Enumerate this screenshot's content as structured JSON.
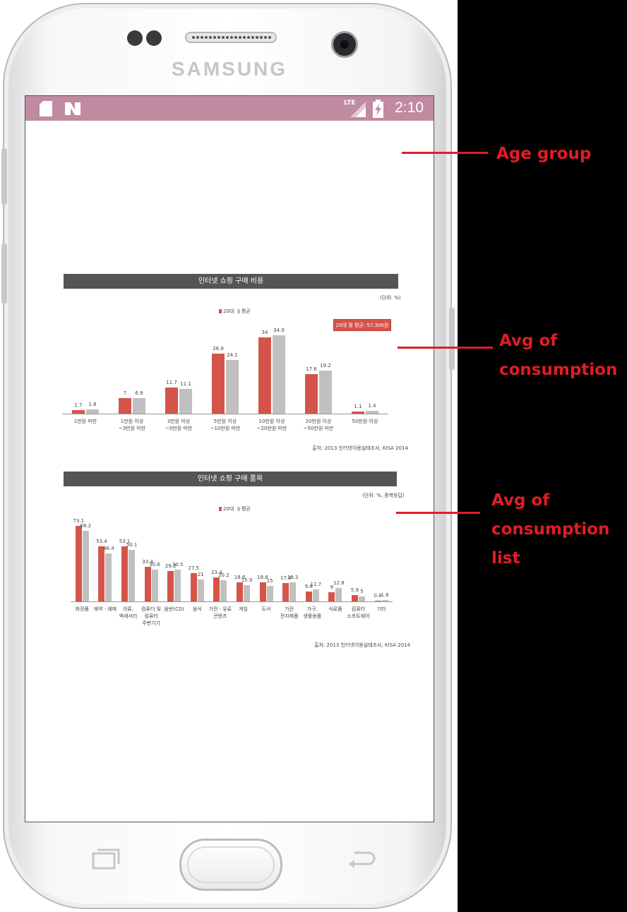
{
  "statusbar": {
    "time": "2:10",
    "network": "LTE"
  },
  "device": {
    "brand": "SAMSUNG"
  },
  "colors": {
    "statusbar": "#c08aa0",
    "series_2013": "#d4544a",
    "series_avg": "#c0c0c0",
    "annotation": "#e01d24"
  },
  "icons": {
    "sdcard": "sdcard-icon",
    "notification": "n-notification-icon",
    "signal": "signal-icon",
    "battery": "battery-charging-icon",
    "recents": "recents-icon",
    "back": "back-icon"
  },
  "annotations": [
    {
      "text": "Age group"
    },
    {
      "text": "Avg of\nconsumption"
    },
    {
      "text": "Avg of\nconsumption\nlist"
    }
  ],
  "chart_data": [
    {
      "type": "bar",
      "title": "인터넷 쇼핑 구매 비용",
      "unit_label": "(단위: %)",
      "badge": "20대 월 평균: 57,300원",
      "source": "출처: 2013 인터넷이용실태조사, KISA 2014",
      "categories": [
        "1만원 미만",
        "1만원 이상\n~3만원 미만",
        "3만원 이상\n~5만원 미만",
        "5만원 이상\n~10만원 미만",
        "10만원 이상\n~20만원 미만",
        "20만원 이상\n~50만원 미만",
        "50만원 이상"
      ],
      "series": [
        {
          "name": "20대",
          "values": [
            1.7,
            7,
            11.7,
            26.9,
            34,
            17.6,
            1.1
          ]
        },
        {
          "name": "평균",
          "values": [
            1.8,
            6.9,
            11.1,
            24.1,
            34.9,
            19.2,
            1.4
          ]
        }
      ],
      "value_labels": [
        [
          "1.7",
          "7",
          "11.7",
          "26.9",
          "34",
          "17.6",
          "1.1"
        ],
        [
          "1.8",
          "6.9",
          "11.1",
          "24.1",
          "34.9",
          "19.2",
          "1.4"
        ]
      ],
      "ylim": [
        0,
        36
      ]
    },
    {
      "type": "bar",
      "title": "인터넷 쇼핑 구매 품목",
      "unit_label": "(단위: %, 중복응답)",
      "source": "출처: 2013 인터넷이용실태조사, KISA 2014",
      "categories": [
        "화장품",
        "예약 · 예매",
        "의류,\n액세서리",
        "컴퓨터 및\n컴퓨터\n주변기기",
        "음반(CD)",
        "음식",
        "가전 · 유료\n콘텐츠",
        "게임",
        "도서",
        "가전\n전자제품",
        "가구,\n생활용품",
        "식료품",
        "컴퓨터\n소프트웨어",
        "기타"
      ],
      "series": [
        {
          "name": "20대",
          "values": [
            73.1,
            53.4,
            53.1,
            33.4,
            29.2,
            27.5,
            23.4,
            18.6,
            18.6,
            17.8,
            9.8,
            9,
            5.9,
            0.8
          ]
        },
        {
          "name": "평균",
          "values": [
            68.2,
            46.4,
            50.1,
            30.6,
            30.5,
            21,
            20.2,
            15.9,
            15,
            18.3,
            11.7,
            12.8,
            5,
            1.6
          ]
        }
      ],
      "value_labels": [
        [
          "73.1",
          "53.4",
          "53.1",
          "33.4",
          "29.2",
          "27.5",
          "23.4",
          "18.6",
          "18.6",
          "17.8",
          "9.8",
          "9",
          "5.9",
          "0.8"
        ],
        [
          "68.2",
          "46.4",
          "50.1",
          "30.6",
          "30.5",
          "21",
          "20.2",
          "15.9",
          "15",
          "18.3",
          "11.7",
          "12.8",
          "5",
          "1.6"
        ]
      ],
      "ylim": [
        0,
        75
      ]
    }
  ]
}
